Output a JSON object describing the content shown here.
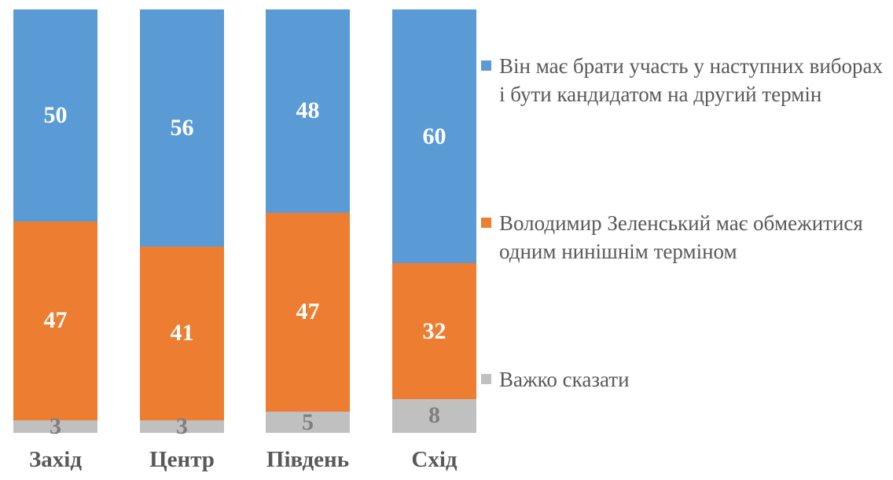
{
  "chart_data": {
    "type": "bar",
    "stacked": true,
    "orientation": "vertical",
    "categories": [
      "Захід",
      "Центр",
      "Південь",
      "Схід"
    ],
    "series": [
      {
        "name": "Він має брати участь у наступних виборах і бути кандидатом на другий термін",
        "color": "#5B9BD5",
        "label_color": "#FFFFFF",
        "values": [
          50,
          56,
          48,
          60
        ]
      },
      {
        "name": "Володимир Зеленський має обмежитися одним нинішнім терміном",
        "color": "#ED7D31",
        "label_color": "#FFFFFF",
        "values": [
          47,
          41,
          47,
          32
        ]
      },
      {
        "name": "Важко сказати",
        "color": "#C0C0C0",
        "label_color": "#7F7F7F",
        "values": [
          3,
          3,
          5,
          8
        ]
      }
    ],
    "ylim": [
      0,
      100
    ],
    "grid": false,
    "legend_position": "right",
    "title": "",
    "xlabel": "",
    "ylabel": ""
  },
  "colors": {
    "category_label": "#595959",
    "legend_text": "#595959",
    "background": "#FFFFFF"
  }
}
